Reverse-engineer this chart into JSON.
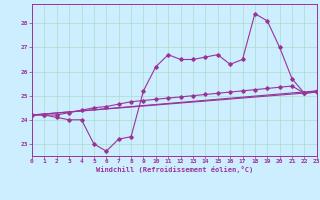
{
  "bg_color": "#cceeff",
  "grid_color": "#aaddcc",
  "line_color": "#993399",
  "xlabel": "Windchill (Refroidissement éolien,°C)",
  "xlim": [
    0,
    23
  ],
  "ylim": [
    22.5,
    28.8
  ],
  "yticks": [
    23,
    24,
    25,
    26,
    27,
    28
  ],
  "xticks": [
    0,
    1,
    2,
    3,
    4,
    5,
    6,
    7,
    8,
    9,
    10,
    11,
    12,
    13,
    14,
    15,
    16,
    17,
    18,
    19,
    20,
    21,
    22,
    23
  ],
  "line1_x": [
    0,
    1,
    2,
    3,
    4,
    5,
    6,
    7,
    8,
    9,
    10,
    11,
    12,
    13,
    14,
    15,
    16,
    17,
    18,
    19,
    20,
    21,
    22,
    23
  ],
  "line1_y": [
    24.2,
    24.2,
    24.1,
    24.0,
    24.0,
    23.0,
    22.7,
    23.2,
    23.3,
    25.2,
    26.2,
    26.7,
    26.5,
    26.5,
    26.6,
    26.7,
    26.3,
    26.5,
    28.4,
    28.1,
    27.0,
    25.7,
    25.1,
    25.2
  ],
  "line2_x": [
    0,
    1,
    2,
    3,
    4,
    5,
    6,
    7,
    8,
    9,
    10,
    11,
    12,
    13,
    14,
    15,
    16,
    17,
    18,
    19,
    20,
    21,
    22,
    23
  ],
  "line2_y": [
    24.2,
    24.2,
    24.2,
    24.3,
    24.4,
    24.5,
    24.55,
    24.65,
    24.75,
    24.8,
    24.85,
    24.9,
    24.95,
    25.0,
    25.05,
    25.1,
    25.15,
    25.2,
    25.25,
    25.3,
    25.35,
    25.4,
    25.1,
    25.15
  ],
  "line3_x": [
    0,
    23
  ],
  "line3_y": [
    24.2,
    25.2
  ],
  "line4_x": [
    0,
    23
  ],
  "line4_y": [
    24.2,
    25.15
  ]
}
